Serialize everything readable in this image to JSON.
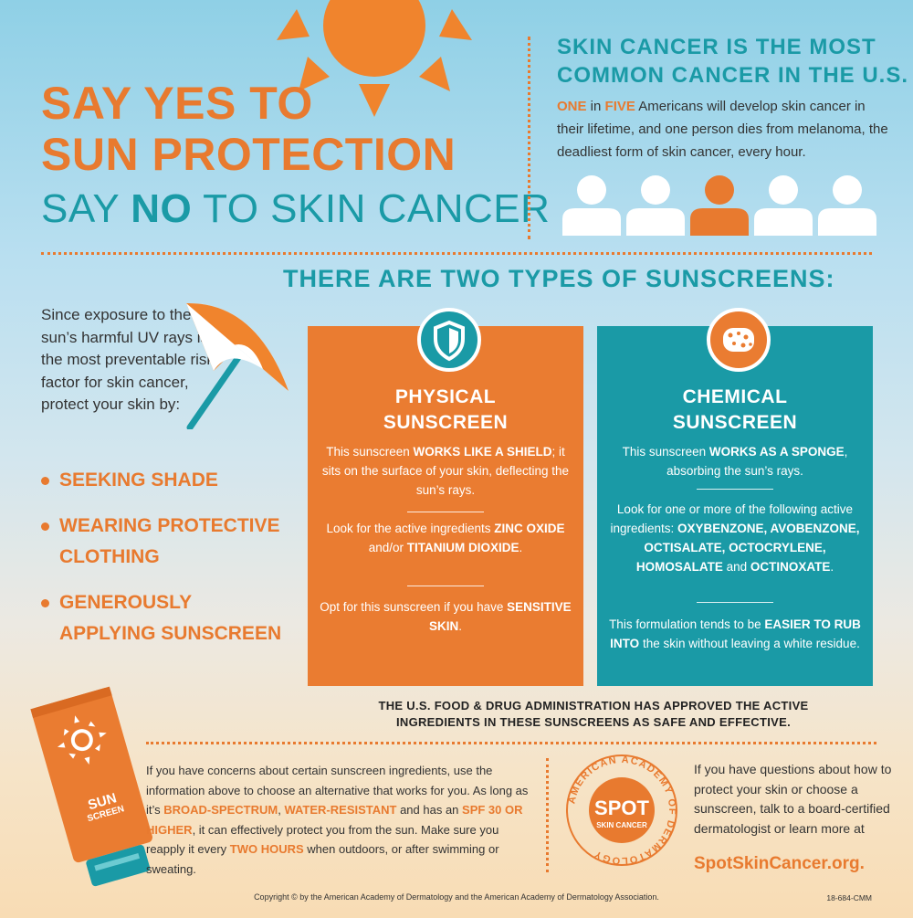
{
  "headline": {
    "say_yes": "SAY YES TO",
    "sun_protection": "SUN PROTECTION",
    "say_no_pre": "SAY ",
    "say_no_word": "NO",
    "say_no_post": " TO SKIN CANCER"
  },
  "stat": {
    "title_line1": "SKIN CANCER IS THE MOST",
    "title_line2": "COMMON CANCER IN THE U.S.",
    "one": "ONE",
    "in": " in ",
    "five": "FIVE",
    "rest": " Americans will develop skin cancer in their lifetime, and one person dies from melanoma, the deadliest form of skin cancer, every hour."
  },
  "types_title": "THERE ARE TWO TYPES OF SUNSCREENS:",
  "intro": "Since exposure to the sun’s harmful UV rays is the most preventable risk factor for skin cancer, protect your skin by:",
  "bullets": [
    {
      "line1": "SEEKING SHADE",
      "line2": ""
    },
    {
      "line1": "WEARING PROTECTIVE",
      "line2": "CLOTHING"
    },
    {
      "line1": "GENEROUSLY",
      "line2": "APPLYING SUNSCREEN"
    }
  ],
  "physical": {
    "title1": "PHYSICAL",
    "title2": "SUNSCREEN",
    "p1_a": "This sunscreen ",
    "p1_b": "WORKS LIKE A SHIELD",
    "p1_c": "; it sits on the surface of your skin, deflecting the sun’s rays.",
    "p2_a": "Look for the active ingredients ",
    "p2_b": "ZINC OXIDE",
    "p2_c": " and/or ",
    "p2_d": "TITANIUM DIOXIDE",
    "p2_e": ".",
    "p3_a": "Opt for this sunscreen if you have ",
    "p3_b": "SENSITIVE SKIN",
    "p3_c": "."
  },
  "chemical": {
    "title1": "CHEMICAL",
    "title2": "SUNSCREEN",
    "p1_a": "This sunscreen ",
    "p1_b": "WORKS AS A SPONGE",
    "p1_c": ", absorbing the sun’s rays.",
    "p2_a": "Look for one or more of the following active ingredients: ",
    "p2_b": "OXYBENZONE, AVOBENZONE, OCTISALATE, OCTOCRYLENE, HOMOSALATE",
    "p2_c": " and ",
    "p2_d": "OCTINOXATE",
    "p2_e": ".",
    "p3_a": "This formulation tends to be ",
    "p3_b": "EASIER TO RUB INTO",
    "p3_c": " the skin without leaving a white residue."
  },
  "fda": "THE U.S. FOOD & DRUG ADMINISTRATION HAS APPROVED THE ACTIVE INGREDIENTS IN THESE SUNSCREENS AS SAFE AND EFFECTIVE.",
  "tube": {
    "line1": "SUN",
    "line2": "SCREEN"
  },
  "concern": {
    "a": "If you have concerns about certain sunscreen ingredients, use the information above to choose an alternative that works for you. As long as it’s ",
    "b": "BROAD-SPECTRUM",
    "c": ", ",
    "d": "WATER-RESISTANT",
    "e": " and has an ",
    "f": "SPF 30 OR HIGHER",
    "g": ", it can effectively protect you from the sun. Make sure you reapply it every ",
    "h": "TWO HOURS",
    "i": " when outdoors, or after swimming or sweating."
  },
  "logo": {
    "ring_text": "AMERICAN ACADEMY OF DERMATOLOGY",
    "spot": "SPOT",
    "skin_cancer": "SKIN CANCER"
  },
  "questions": "If you have questions about how to protect your skin or choose a sunscreen, talk to a board-certified dermatologist or learn more at",
  "website": "SpotSkinCancer.org.",
  "copyright": "Copyright © by the American Academy of Dermatology and the American Academy of Dermatology Association.",
  "code": "18-684-CMM",
  "colors": {
    "orange": "#e87a2f",
    "teal": "#1a9aa6"
  }
}
